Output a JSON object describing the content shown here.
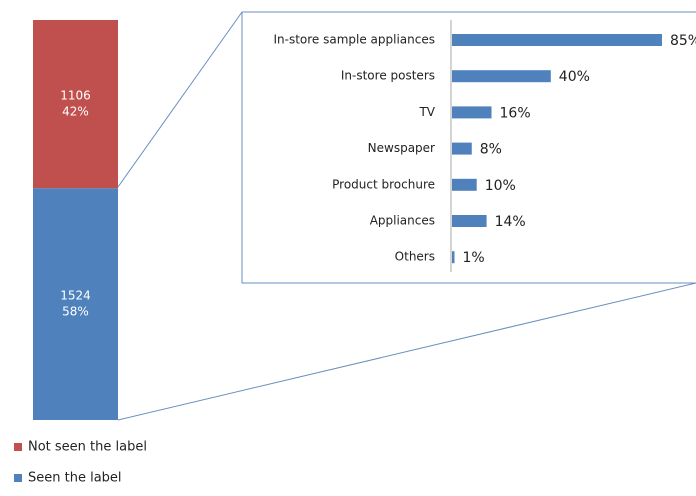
{
  "chart_data": [
    {
      "type": "stacked_bar",
      "series": [
        {
          "name": "Seen the label",
          "color": "#4f81bd",
          "values": [
            1524
          ],
          "share_labels": [
            "58%"
          ]
        },
        {
          "name": "Not seen the label",
          "color": "#c0504d",
          "values": [
            1106
          ],
          "share_labels": [
            "42%"
          ]
        }
      ],
      "ylim": [
        0,
        2630
      ],
      "legend": "bottom"
    },
    {
      "type": "hbar",
      "categories": [
        "In-store sample appliances",
        "In-store posters",
        "TV",
        "Newspaper",
        "Product brochure",
        "Appliances",
        "Others"
      ],
      "values": [
        85,
        40,
        16,
        8,
        10,
        14,
        1
      ],
      "value_labels": [
        "85%",
        "40%",
        "16%",
        "8%",
        "10%",
        "14%",
        "1%"
      ],
      "color": "#4f81bd",
      "xlim": [
        0,
        100
      ]
    }
  ]
}
